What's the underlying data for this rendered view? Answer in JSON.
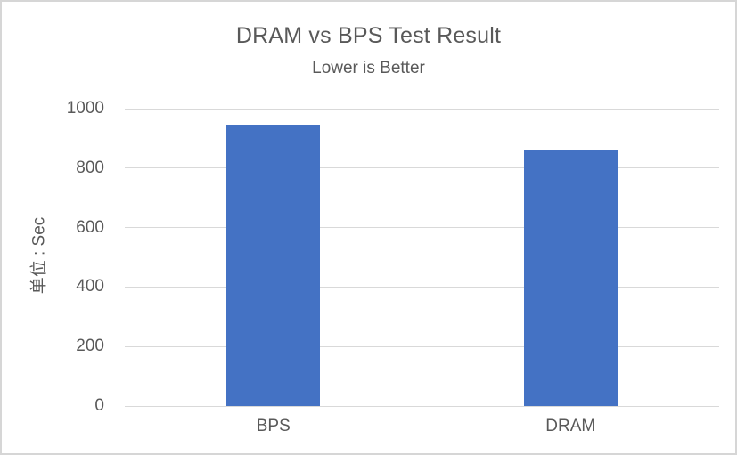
{
  "chart": {
    "title": "DRAM vs BPS Test Result",
    "subtitle": "Lower is Better",
    "y_axis_title": "单位 : Sec"
  },
  "chart_data": {
    "type": "bar",
    "title": "DRAM vs BPS Test Result",
    "subtitle": "Lower is Better",
    "categories": [
      "BPS",
      "DRAM"
    ],
    "values": [
      945,
      863
    ],
    "xlabel": "",
    "ylabel": "单位 : Sec",
    "ylim": [
      0,
      1000
    ],
    "yticks": [
      0,
      200,
      400,
      600,
      800,
      1000
    ],
    "grid": true,
    "legend": false,
    "colors": {
      "bar_fill": "#4472C4",
      "text": "#595959",
      "gridline": "#d9d9d9",
      "frame_border": "#d6d6d6"
    }
  }
}
